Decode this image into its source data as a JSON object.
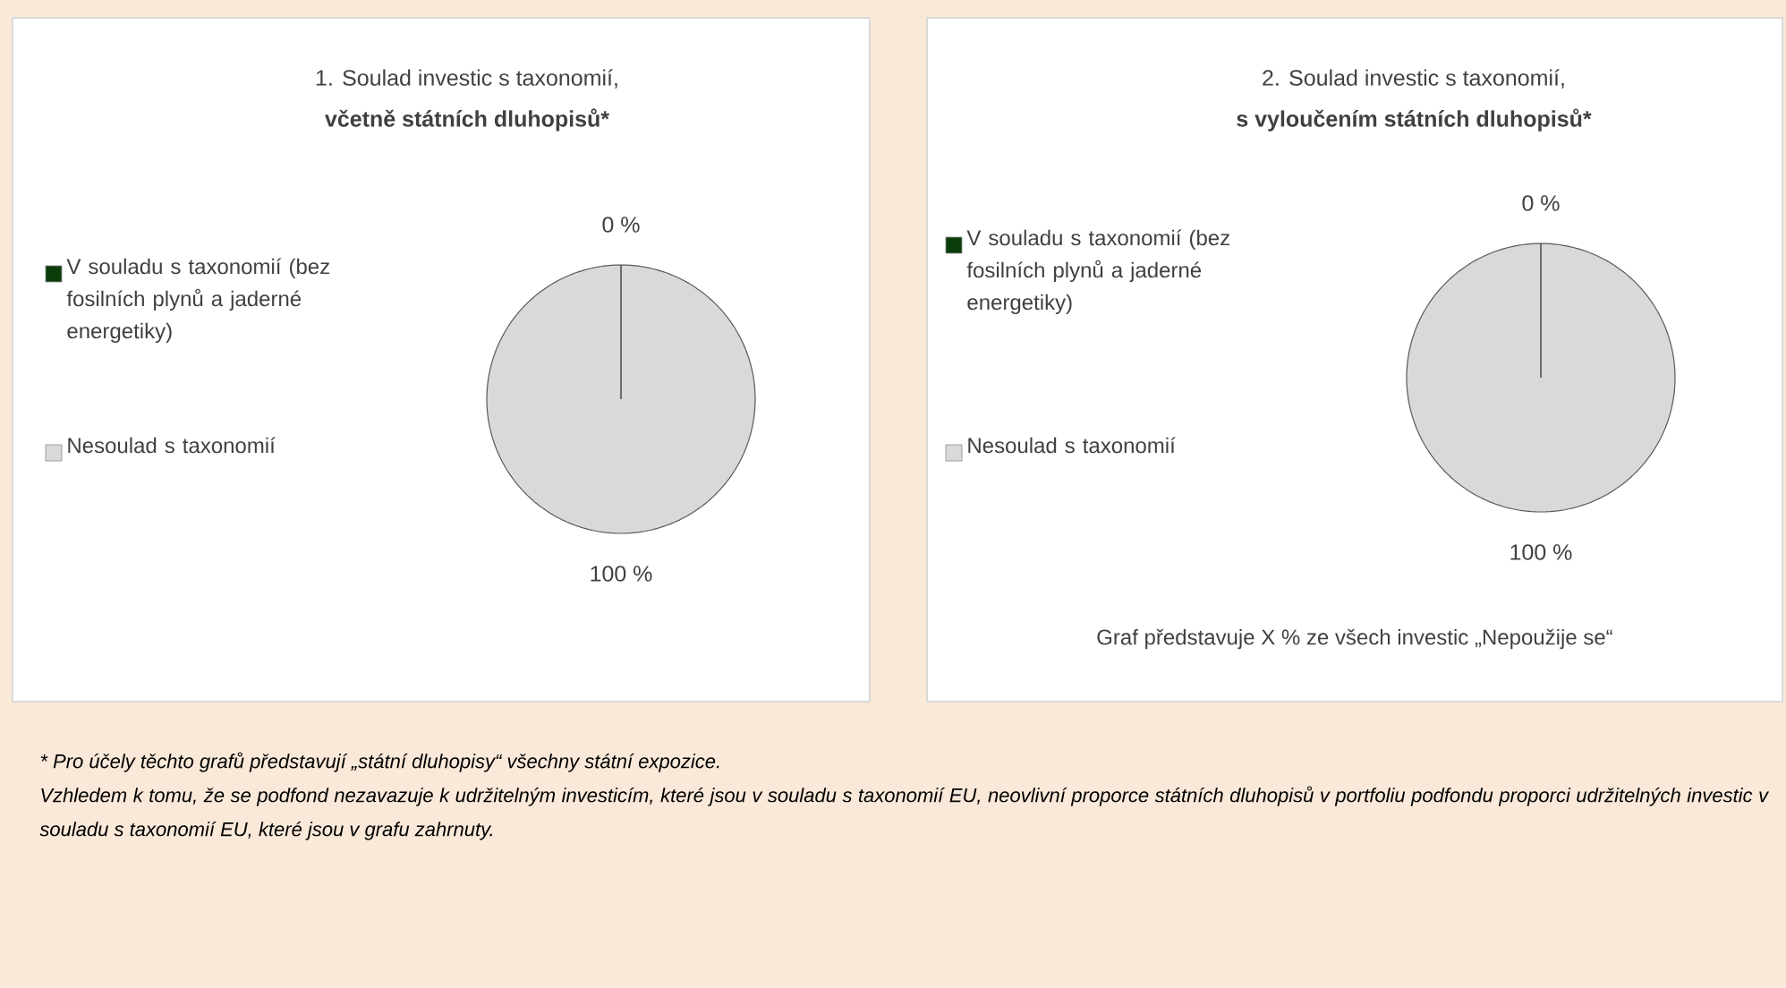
{
  "chart_data": [
    {
      "type": "pie",
      "title": "1. Soulad investic s taxonomií,",
      "subtitle": "včetně státních dluhopisů*",
      "categories": [
        "V souladu s taxonomií (bez fosilních plynů a jaderné energetiky)",
        "Nesoulad s taxonomií"
      ],
      "values": [
        0,
        100
      ],
      "colors": [
        "#0b3d0b",
        "#d9d9d9"
      ],
      "value_labels": [
        "0 %",
        "100 %"
      ],
      "legend": "left"
    },
    {
      "type": "pie",
      "title": "2. Soulad investic s taxonomií,",
      "subtitle": "s vyloučením státních dluhopisů*",
      "categories": [
        "V souladu s taxonomií (bez fosilních plynů a jaderné energetiky)",
        "Nesoulad s taxonomií"
      ],
      "values": [
        0,
        100
      ],
      "colors": [
        "#0b3d0b",
        "#d9d9d9"
      ],
      "value_labels": [
        "0 %",
        "100 %"
      ],
      "legend": "left",
      "annotations": [
        "Graf představuje X % ze všech investic „Nepoužije se“",
        "* Pro účely těchto grafů představují „státní dluhopisy“ všechny státní expozice.",
        "Vzhledem k tomu, že se podfond nezavazuje k udržitelným investicím, které jsou v souladu s taxonomií EU, neovlivní proporce státních dluhopisů v portfoliu podfondu proporci udržitelných investic v souladu s taxonomií EU, které jsou v grafu zahrnuty."
      ]
    }
  ]
}
